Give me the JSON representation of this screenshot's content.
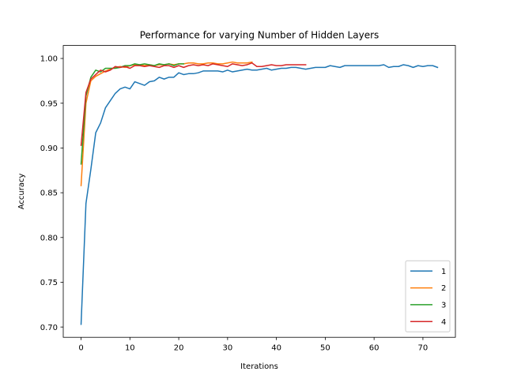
{
  "chart_data": {
    "type": "line",
    "title": "Performance for varying Number of Hidden Layers",
    "xlabel": "Iterations",
    "ylabel": "Accuracy",
    "xlim": [
      -3.65,
      76.65
    ],
    "ylim": [
      0.6885,
      1.0145
    ],
    "xticks": [
      0,
      10,
      20,
      30,
      40,
      50,
      60,
      70
    ],
    "yticks": [
      0.7,
      0.75,
      0.8,
      0.85,
      0.9,
      0.95,
      1.0
    ],
    "ytick_labels": [
      "0.70",
      "0.75",
      "0.80",
      "0.85",
      "0.90",
      "0.95",
      "1.00"
    ],
    "legend": "lower-right",
    "grid": false,
    "series": [
      {
        "name": "1",
        "color": "#1f77b4",
        "x": [
          0,
          1,
          2,
          3,
          4,
          5,
          6,
          7,
          8,
          9,
          10,
          11,
          12,
          13,
          14,
          15,
          16,
          17,
          18,
          19,
          20,
          21,
          22,
          23,
          24,
          25,
          26,
          27,
          28,
          29,
          30,
          31,
          32,
          33,
          34,
          35,
          36,
          37,
          38,
          39,
          40,
          41,
          42,
          43,
          44,
          45,
          46,
          47,
          48,
          49,
          50,
          51,
          52,
          53,
          54,
          55,
          56,
          57,
          58,
          59,
          60,
          61,
          62,
          63,
          64,
          65,
          66,
          67,
          68,
          69,
          70,
          71,
          72,
          73
        ],
        "y": [
          0.703,
          0.838,
          0.876,
          0.917,
          0.928,
          0.945,
          0.953,
          0.961,
          0.966,
          0.968,
          0.966,
          0.974,
          0.972,
          0.97,
          0.974,
          0.975,
          0.979,
          0.977,
          0.979,
          0.979,
          0.984,
          0.982,
          0.983,
          0.983,
          0.984,
          0.986,
          0.986,
          0.986,
          0.986,
          0.985,
          0.987,
          0.985,
          0.986,
          0.987,
          0.988,
          0.987,
          0.987,
          0.988,
          0.989,
          0.987,
          0.988,
          0.989,
          0.989,
          0.99,
          0.99,
          0.989,
          0.988,
          0.989,
          0.99,
          0.99,
          0.99,
          0.992,
          0.991,
          0.99,
          0.992,
          0.992,
          0.992,
          0.992,
          0.992,
          0.992,
          0.992,
          0.992,
          0.993,
          0.99,
          0.991,
          0.991,
          0.993,
          0.992,
          0.99,
          0.992,
          0.991,
          0.992,
          0.992,
          0.99
        ]
      },
      {
        "name": "2",
        "color": "#ff7f0e",
        "x": [
          0,
          1,
          2,
          3,
          4,
          5,
          6,
          7,
          8,
          9,
          10,
          11,
          12,
          13,
          14,
          15,
          16,
          17,
          18,
          19,
          20,
          21,
          22,
          23,
          24,
          25,
          26,
          27,
          28,
          29,
          30,
          31,
          32,
          33,
          34,
          35
        ],
        "y": [
          0.858,
          0.95,
          0.975,
          0.98,
          0.983,
          0.986,
          0.988,
          0.99,
          0.991,
          0.99,
          0.992,
          0.993,
          0.993,
          0.992,
          0.993,
          0.992,
          0.993,
          0.993,
          0.994,
          0.993,
          0.994,
          0.994,
          0.995,
          0.995,
          0.994,
          0.994,
          0.995,
          0.995,
          0.994,
          0.994,
          0.995,
          0.996,
          0.995,
          0.995,
          0.995,
          0.996
        ]
      },
      {
        "name": "3",
        "color": "#2ca02c",
        "x": [
          0,
          1,
          2,
          3,
          4,
          5,
          6,
          7,
          8,
          9,
          10,
          11,
          12,
          13,
          14,
          15,
          16,
          17,
          18,
          19,
          20,
          21
        ],
        "y": [
          0.882,
          0.958,
          0.979,
          0.987,
          0.985,
          0.989,
          0.989,
          0.989,
          0.99,
          0.992,
          0.992,
          0.994,
          0.993,
          0.994,
          0.993,
          0.992,
          0.994,
          0.993,
          0.994,
          0.992,
          0.994,
          0.994
        ]
      },
      {
        "name": "4",
        "color": "#d62728",
        "x": [
          0,
          1,
          2,
          3,
          4,
          5,
          6,
          7,
          8,
          9,
          10,
          11,
          12,
          13,
          14,
          15,
          16,
          17,
          18,
          19,
          20,
          21,
          22,
          23,
          24,
          25,
          26,
          27,
          28,
          29,
          30,
          31,
          32,
          33,
          34,
          35,
          36,
          37,
          38,
          39,
          40,
          41,
          42,
          43,
          44,
          45,
          46
        ],
        "y": [
          0.903,
          0.962,
          0.977,
          0.982,
          0.987,
          0.985,
          0.987,
          0.991,
          0.99,
          0.991,
          0.989,
          0.992,
          0.992,
          0.991,
          0.992,
          0.991,
          0.99,
          0.992,
          0.992,
          0.99,
          0.992,
          0.99,
          0.992,
          0.993,
          0.992,
          0.993,
          0.992,
          0.994,
          0.993,
          0.992,
          0.991,
          0.994,
          0.993,
          0.992,
          0.993,
          0.995,
          0.991,
          0.991,
          0.992,
          0.993,
          0.992,
          0.992,
          0.993,
          0.993,
          0.993,
          0.993,
          0.993
        ]
      }
    ]
  }
}
